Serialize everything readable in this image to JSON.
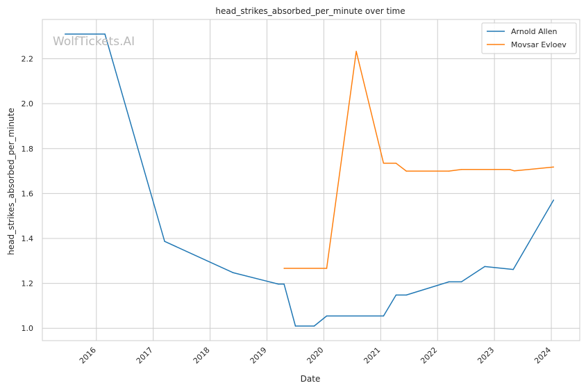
{
  "chart_data": {
    "type": "line",
    "title": "head_strikes_absorbed_per_minute over time",
    "xlabel": "Date",
    "ylabel": "head_strikes_absorbed_per_minute",
    "watermark": "WolfTickets.AI",
    "x_ticks": [
      "2016",
      "2017",
      "2018",
      "2019",
      "2020",
      "2021",
      "2022",
      "2023",
      "2024"
    ],
    "y_ticks": [
      "1.0",
      "1.2",
      "1.4",
      "1.6",
      "1.8",
      "2.0",
      "2.2"
    ],
    "xlim": [
      2015.05,
      2024.5
    ],
    "ylim": [
      0.945,
      2.375
    ],
    "grid": true,
    "legend": "top-right",
    "series": [
      {
        "name": "Arnold Allen",
        "color": "#1f77b4",
        "points": [
          [
            2015.45,
            2.31
          ],
          [
            2016.15,
            2.31
          ],
          [
            2017.2,
            1.387
          ],
          [
            2018.4,
            1.248
          ],
          [
            2019.2,
            1.197
          ],
          [
            2019.3,
            1.197
          ],
          [
            2019.5,
            1.01
          ],
          [
            2019.83,
            1.01
          ],
          [
            2020.05,
            1.055
          ],
          [
            2021.05,
            1.055
          ],
          [
            2021.27,
            1.148
          ],
          [
            2021.45,
            1.148
          ],
          [
            2022.2,
            1.207
          ],
          [
            2022.42,
            1.207
          ],
          [
            2022.83,
            1.275
          ],
          [
            2023.33,
            1.262
          ],
          [
            2024.04,
            1.571
          ]
        ]
      },
      {
        "name": "Movsar Evloev",
        "color": "#ff7f0e",
        "points": [
          [
            2019.3,
            1.267
          ],
          [
            2020.05,
            1.267
          ],
          [
            2020.57,
            2.233
          ],
          [
            2021.05,
            1.735
          ],
          [
            2021.27,
            1.735
          ],
          [
            2021.45,
            1.7
          ],
          [
            2022.2,
            1.7
          ],
          [
            2022.42,
            1.707
          ],
          [
            2023.27,
            1.707
          ],
          [
            2023.35,
            1.701
          ],
          [
            2024.04,
            1.718
          ]
        ]
      }
    ]
  }
}
